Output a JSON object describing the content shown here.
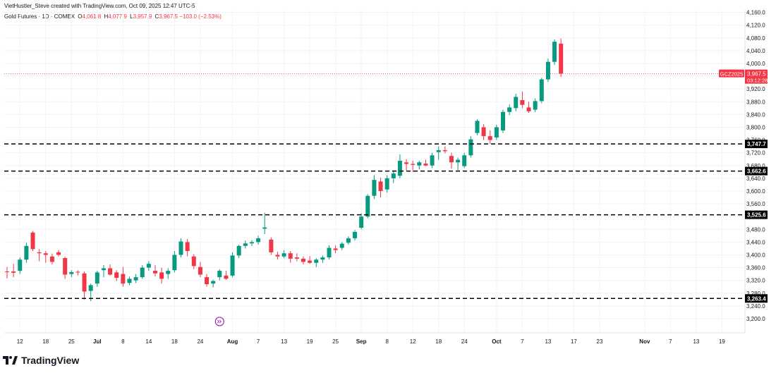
{
  "header": {
    "created_by": "VietHustler_Steve created with TradingView.com, Oct 09, 2025 12:47 UTC-5"
  },
  "symbol": {
    "name": "Gold Futures · 1D · COMEX",
    "o_label": "O",
    "o_value": "4,061.8",
    "h_label": "H",
    "h_value": "4,077.9",
    "l_label": "L",
    "l_value": "3,957.9",
    "c_label": "C",
    "c_value": "3,967.5",
    "change": "−103.0 (−2.53%)"
  },
  "footer": {
    "brand": "TradingView"
  },
  "colors": {
    "up": "#089981",
    "down": "#f23645",
    "grid": "#f0f3fa",
    "level": "#000000",
    "price_line": "#f23645"
  },
  "chart_data": {
    "type": "candlestick",
    "title": "Gold Futures · 1D · COMEX",
    "y_range": [
      3180,
      4180
    ],
    "y_ticks": [
      {
        "v": 3200,
        "label": "3,200.0"
      },
      {
        "v": 3240,
        "label": "3,240.0"
      },
      {
        "v": 3280,
        "label": "3,280.0"
      },
      {
        "v": 3320,
        "label": "3,320.0"
      },
      {
        "v": 3360,
        "label": "3,360.0"
      },
      {
        "v": 3400,
        "label": "3,400.0"
      },
      {
        "v": 3440,
        "label": "3,440.0"
      },
      {
        "v": 3480,
        "label": "3,480.0"
      },
      {
        "v": 3520,
        "label": "3,520.0"
      },
      {
        "v": 3560,
        "label": "3,560.0"
      },
      {
        "v": 3600,
        "label": "3,600.0"
      },
      {
        "v": 3640,
        "label": "3,640.0"
      },
      {
        "v": 3680,
        "label": "3,680.0"
      },
      {
        "v": 3720,
        "label": "3,720.0"
      },
      {
        "v": 3760,
        "label": "3,760.0"
      },
      {
        "v": 3800,
        "label": "3,800.0"
      },
      {
        "v": 3840,
        "label": "3,840.0"
      },
      {
        "v": 3880,
        "label": "3,880.0"
      },
      {
        "v": 3920,
        "label": "3,920.0"
      },
      {
        "v": 3960,
        "label": "3,960.0"
      },
      {
        "v": 4000,
        "label": "4,000.0"
      },
      {
        "v": 4040,
        "label": "4,040.0"
      },
      {
        "v": 4080,
        "label": "4,080.0"
      },
      {
        "v": 4120,
        "label": "4,120.0"
      },
      {
        "v": 4160,
        "label": "4,160.0"
      }
    ],
    "x_ticks": [
      {
        "i": 2,
        "label": "12",
        "bold": false
      },
      {
        "i": 6,
        "label": "18",
        "bold": false
      },
      {
        "i": 10,
        "label": "25",
        "bold": false
      },
      {
        "i": 14,
        "label": "Jul",
        "bold": true
      },
      {
        "i": 18,
        "label": "8",
        "bold": false
      },
      {
        "i": 22,
        "label": "14",
        "bold": false
      },
      {
        "i": 26,
        "label": "18",
        "bold": false
      },
      {
        "i": 30,
        "label": "24",
        "bold": false
      },
      {
        "i": 35,
        "label": "Aug",
        "bold": true
      },
      {
        "i": 39,
        "label": "7",
        "bold": false
      },
      {
        "i": 43,
        "label": "13",
        "bold": false
      },
      {
        "i": 47,
        "label": "19",
        "bold": false
      },
      {
        "i": 51,
        "label": "25",
        "bold": false
      },
      {
        "i": 55,
        "label": "Sep",
        "bold": true
      },
      {
        "i": 59,
        "label": "8",
        "bold": false
      },
      {
        "i": 63,
        "label": "12",
        "bold": false
      },
      {
        "i": 67,
        "label": "18",
        "bold": false
      },
      {
        "i": 71,
        "label": "24",
        "bold": false
      },
      {
        "i": 76,
        "label": "Oct",
        "bold": true
      },
      {
        "i": 80,
        "label": "7",
        "bold": false
      },
      {
        "i": 84,
        "label": "13",
        "bold": false
      },
      {
        "i": 88,
        "label": "17",
        "bold": false
      },
      {
        "i": 92,
        "label": "23",
        "bold": false
      },
      {
        "i": 99,
        "label": "Nov",
        "bold": true
      },
      {
        "i": 103,
        "label": "7",
        "bold": false
      },
      {
        "i": 107,
        "label": "13",
        "bold": false
      },
      {
        "i": 111,
        "label": "19",
        "bold": false
      }
    ],
    "levels": [
      {
        "value": 3747.7,
        "label": "3,747.7"
      },
      {
        "value": 3662.6,
        "label": "3,662.6"
      },
      {
        "value": 3525.6,
        "label": "3,525.6"
      },
      {
        "value": 3263.4,
        "label": "3,263.4"
      }
    ],
    "last_price": {
      "value": 3967.5,
      "label": "3,967.5",
      "symbol": "GCZ2025",
      "countdown": "03:12:28"
    },
    "event_marker": {
      "index": 33,
      "value": 3200
    },
    "candles": [
      {
        "o": 3348,
        "h": 3362,
        "l": 3326,
        "c": 3346
      },
      {
        "o": 3348,
        "h": 3372,
        "l": 3330,
        "c": 3344
      },
      {
        "o": 3350,
        "h": 3392,
        "l": 3340,
        "c": 3385
      },
      {
        "o": 3385,
        "h": 3438,
        "l": 3375,
        "c": 3428
      },
      {
        "o": 3470,
        "h": 3475,
        "l": 3412,
        "c": 3418
      },
      {
        "o": 3408,
        "h": 3418,
        "l": 3380,
        "c": 3405
      },
      {
        "o": 3405,
        "h": 3412,
        "l": 3375,
        "c": 3400
      },
      {
        "o": 3395,
        "h": 3404,
        "l": 3370,
        "c": 3378
      },
      {
        "o": 3408,
        "h": 3415,
        "l": 3395,
        "c": 3400
      },
      {
        "o": 3390,
        "h": 3395,
        "l": 3325,
        "c": 3338
      },
      {
        "o": 3340,
        "h": 3352,
        "l": 3330,
        "c": 3346
      },
      {
        "o": 3347,
        "h": 3352,
        "l": 3336,
        "c": 3345
      },
      {
        "o": 3342,
        "h": 3348,
        "l": 3260,
        "c": 3285
      },
      {
        "o": 3287,
        "h": 3310,
        "l": 3255,
        "c": 3305
      },
      {
        "o": 3310,
        "h": 3350,
        "l": 3300,
        "c": 3345
      },
      {
        "o": 3352,
        "h": 3368,
        "l": 3330,
        "c": 3358
      },
      {
        "o": 3358,
        "h": 3370,
        "l": 3335,
        "c": 3338
      },
      {
        "o": 3345,
        "h": 3352,
        "l": 3318,
        "c": 3328
      },
      {
        "o": 3340,
        "h": 3362,
        "l": 3300,
        "c": 3310
      },
      {
        "o": 3312,
        "h": 3332,
        "l": 3305,
        "c": 3325
      },
      {
        "o": 3320,
        "h": 3340,
        "l": 3312,
        "c": 3330
      },
      {
        "o": 3330,
        "h": 3368,
        "l": 3325,
        "c": 3360
      },
      {
        "o": 3360,
        "h": 3380,
        "l": 3350,
        "c": 3372
      },
      {
        "o": 3350,
        "h": 3368,
        "l": 3332,
        "c": 3342
      },
      {
        "o": 3345,
        "h": 3360,
        "l": 3310,
        "c": 3325
      },
      {
        "o": 3340,
        "h": 3358,
        "l": 3325,
        "c": 3350
      },
      {
        "o": 3352,
        "h": 3412,
        "l": 3345,
        "c": 3400
      },
      {
        "o": 3400,
        "h": 3452,
        "l": 3392,
        "c": 3442
      },
      {
        "o": 3440,
        "h": 3450,
        "l": 3395,
        "c": 3412
      },
      {
        "o": 3395,
        "h": 3402,
        "l": 3355,
        "c": 3365
      },
      {
        "o": 3362,
        "h": 3378,
        "l": 3330,
        "c": 3338
      },
      {
        "o": 3330,
        "h": 3340,
        "l": 3300,
        "c": 3308
      },
      {
        "o": 3310,
        "h": 3322,
        "l": 3298,
        "c": 3318
      },
      {
        "o": 3330,
        "h": 3355,
        "l": 3320,
        "c": 3350
      },
      {
        "o": 3335,
        "h": 3350,
        "l": 3322,
        "c": 3325
      },
      {
        "o": 3335,
        "h": 3408,
        "l": 3330,
        "c": 3398
      },
      {
        "o": 3398,
        "h": 3432,
        "l": 3390,
        "c": 3428
      },
      {
        "o": 3428,
        "h": 3445,
        "l": 3420,
        "c": 3436
      },
      {
        "o": 3436,
        "h": 3446,
        "l": 3428,
        "c": 3440
      },
      {
        "o": 3440,
        "h": 3460,
        "l": 3432,
        "c": 3452
      },
      {
        "o": 3482,
        "h": 3532,
        "l": 3465,
        "c": 3486
      },
      {
        "o": 3448,
        "h": 3455,
        "l": 3400,
        "c": 3408
      },
      {
        "o": 3400,
        "h": 3410,
        "l": 3385,
        "c": 3395
      },
      {
        "o": 3395,
        "h": 3415,
        "l": 3390,
        "c": 3405
      },
      {
        "o": 3405,
        "h": 3412,
        "l": 3375,
        "c": 3388
      },
      {
        "o": 3392,
        "h": 3405,
        "l": 3380,
        "c": 3388
      },
      {
        "o": 3388,
        "h": 3395,
        "l": 3370,
        "c": 3378
      },
      {
        "o": 3382,
        "h": 3396,
        "l": 3372,
        "c": 3375
      },
      {
        "o": 3375,
        "h": 3390,
        "l": 3362,
        "c": 3385
      },
      {
        "o": 3385,
        "h": 3398,
        "l": 3375,
        "c": 3392
      },
      {
        "o": 3392,
        "h": 3430,
        "l": 3385,
        "c": 3422
      },
      {
        "o": 3420,
        "h": 3430,
        "l": 3405,
        "c": 3415
      },
      {
        "o": 3422,
        "h": 3440,
        "l": 3415,
        "c": 3435
      },
      {
        "o": 3438,
        "h": 3458,
        "l": 3432,
        "c": 3452
      },
      {
        "o": 3452,
        "h": 3478,
        "l": 3445,
        "c": 3472
      },
      {
        "o": 3485,
        "h": 3530,
        "l": 3480,
        "c": 3520
      },
      {
        "o": 3520,
        "h": 3590,
        "l": 3515,
        "c": 3585
      },
      {
        "o": 3585,
        "h": 3650,
        "l": 3575,
        "c": 3635
      },
      {
        "o": 3630,
        "h": 3642,
        "l": 3580,
        "c": 3600
      },
      {
        "o": 3605,
        "h": 3650,
        "l": 3595,
        "c": 3640
      },
      {
        "o": 3640,
        "h": 3665,
        "l": 3625,
        "c": 3655
      },
      {
        "o": 3648,
        "h": 3715,
        "l": 3640,
        "c": 3695
      },
      {
        "o": 3690,
        "h": 3700,
        "l": 3665,
        "c": 3685
      },
      {
        "o": 3685,
        "h": 3695,
        "l": 3660,
        "c": 3682
      },
      {
        "o": 3680,
        "h": 3695,
        "l": 3668,
        "c": 3690
      },
      {
        "o": 3686,
        "h": 3698,
        "l": 3678,
        "c": 3680
      },
      {
        "o": 3680,
        "h": 3720,
        "l": 3672,
        "c": 3712
      },
      {
        "o": 3722,
        "h": 3740,
        "l": 3698,
        "c": 3728
      },
      {
        "o": 3728,
        "h": 3740,
        "l": 3718,
        "c": 3725
      },
      {
        "o": 3710,
        "h": 3720,
        "l": 3670,
        "c": 3690
      },
      {
        "o": 3690,
        "h": 3705,
        "l": 3665,
        "c": 3698
      },
      {
        "o": 3678,
        "h": 3720,
        "l": 3672,
        "c": 3712
      },
      {
        "o": 3712,
        "h": 3772,
        "l": 3705,
        "c": 3762
      },
      {
        "o": 3782,
        "h": 3825,
        "l": 3775,
        "c": 3820
      },
      {
        "o": 3800,
        "h": 3810,
        "l": 3760,
        "c": 3772
      },
      {
        "o": 3772,
        "h": 3790,
        "l": 3748,
        "c": 3760
      },
      {
        "o": 3768,
        "h": 3808,
        "l": 3760,
        "c": 3800
      },
      {
        "o": 3790,
        "h": 3855,
        "l": 3782,
        "c": 3848
      },
      {
        "o": 3848,
        "h": 3872,
        "l": 3838,
        "c": 3862
      },
      {
        "o": 3860,
        "h": 3905,
        "l": 3850,
        "c": 3895
      },
      {
        "o": 3885,
        "h": 3912,
        "l": 3860,
        "c": 3870
      },
      {
        "o": 3862,
        "h": 3880,
        "l": 3845,
        "c": 3850
      },
      {
        "o": 3855,
        "h": 3890,
        "l": 3848,
        "c": 3882
      },
      {
        "o": 3882,
        "h": 3955,
        "l": 3875,
        "c": 3950
      },
      {
        "o": 3950,
        "h": 4015,
        "l": 3942,
        "c": 4005
      },
      {
        "o": 4005,
        "h": 4075,
        "l": 3995,
        "c": 4068
      },
      {
        "o": 4062,
        "h": 4078,
        "l": 3958,
        "c": 3968
      }
    ]
  }
}
